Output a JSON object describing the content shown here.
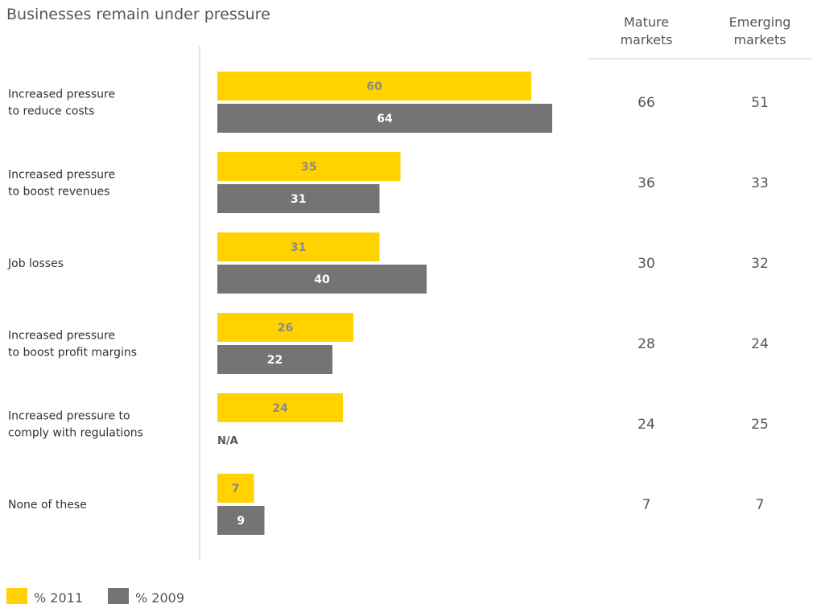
{
  "colors": {
    "series_2011": "#FFD200",
    "series_2009": "#747474",
    "label_on_2011": "#8a8a8a",
    "label_on_2009": "#ffffff",
    "axis": "#cccccc"
  },
  "chart_data": {
    "type": "bar",
    "orientation": "horizontal",
    "title": "Businesses remain under pressure",
    "categories": [
      [
        "Increased pressure",
        "to reduce costs"
      ],
      [
        "Increased pressure",
        "to boost revenues"
      ],
      [
        "Job losses"
      ],
      [
        "Increased pressure",
        "to boost profit margins"
      ],
      [
        "Increased pressure to",
        "comply with regulations"
      ],
      [
        "None of these"
      ]
    ],
    "series": [
      {
        "name": "% 2011",
        "values": [
          60,
          35,
          31,
          26,
          24,
          7
        ],
        "color": "#FFD200"
      },
      {
        "name": "% 2009",
        "values": [
          64,
          31,
          40,
          22,
          null,
          9
        ],
        "color": "#747474"
      }
    ],
    "missing_label": "N/A",
    "xlim": [
      0,
      100
    ],
    "grid": false,
    "legend": "bottom-left",
    "table": {
      "columns": [
        [
          "Mature",
          "markets"
        ],
        [
          "Emerging",
          "markets"
        ]
      ],
      "rows": [
        [
          66,
          51
        ],
        [
          36,
          33
        ],
        [
          30,
          32
        ],
        [
          28,
          24
        ],
        [
          24,
          25
        ],
        [
          7,
          7
        ]
      ]
    }
  }
}
